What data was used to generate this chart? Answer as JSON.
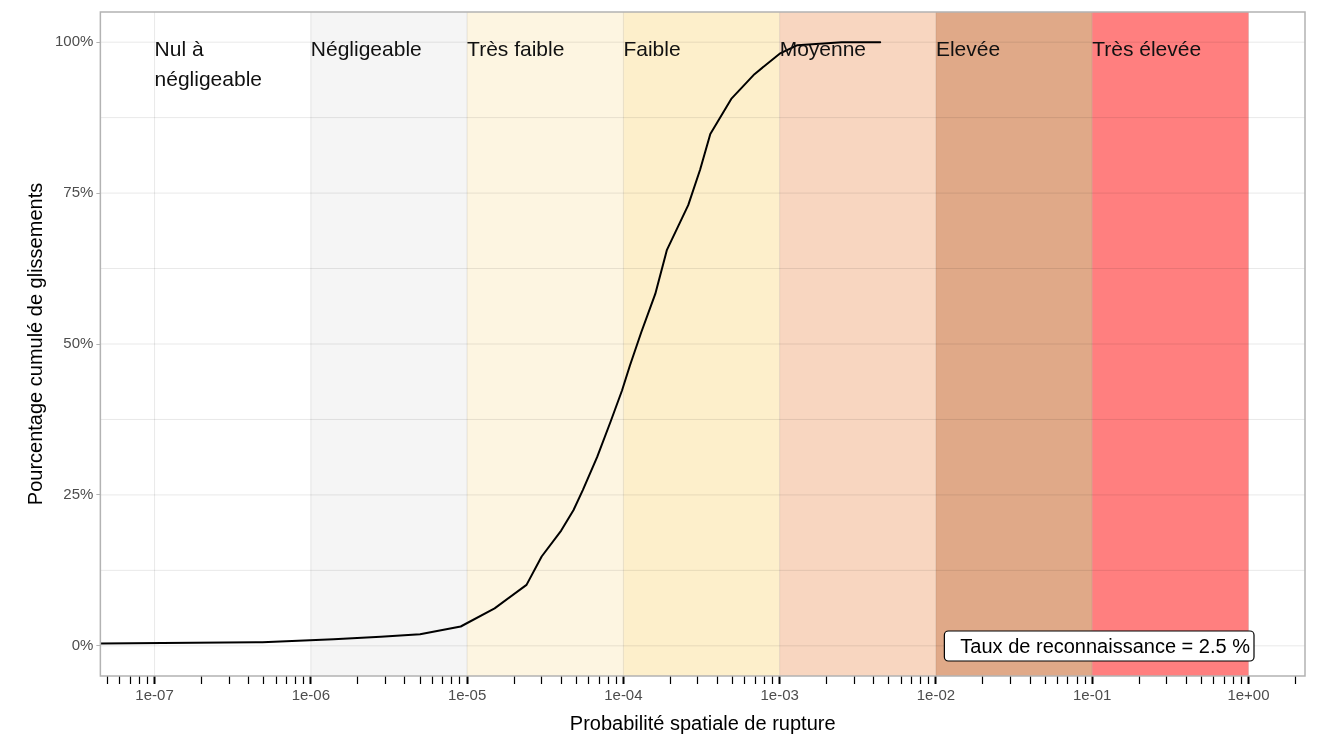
{
  "chart_data": {
    "type": "line",
    "xlabel": "Probabilité spatiale de rupture",
    "ylabel": "Pourcentage cumulé de glissements",
    "log": "x",
    "grid": true,
    "legend": false,
    "marker": "none",
    "line_style": "solid",
    "series": [
      {
        "color": "#000000",
        "x": [
          4.5e-08,
          4.9e-07,
          1.4e-06,
          2.8e-06,
          5e-06,
          9.1e-06,
          1.5e-05,
          2.4e-05,
          3e-05,
          4e-05,
          4.8e-05,
          5.5e-05,
          6.8e-05,
          8.3e-05,
          9.8e-05,
          0.00011,
          0.00013,
          0.00016,
          0.00019,
          0.00026,
          0.00031,
          0.00036,
          0.00049,
          0.00069,
          0.001,
          0.0013,
          0.0025,
          0.0044
        ],
        "values": [
          0.4,
          0.6,
          1.1,
          1.5,
          1.9,
          3.2,
          6.2,
          10.1,
          14.8,
          19.1,
          22.5,
          25.8,
          31.3,
          37.2,
          42.3,
          46.4,
          51.9,
          58.3,
          65.6,
          73,
          78.9,
          84.8,
          90.6,
          94.7,
          98.1,
          99.5,
          100,
          100
        ]
      }
    ],
    "xlim": [
      4.5e-08,
      2.3
    ],
    "xticks": [
      {
        "value": 5e-08,
        "label": null
      },
      {
        "value": 6e-08,
        "label": null
      },
      {
        "value": 7e-08,
        "label": null
      },
      {
        "value": 8e-08,
        "label": null
      },
      {
        "value": 9e-08,
        "label": null
      },
      {
        "value": 1e-07,
        "label": "1e-07"
      },
      {
        "value": 2e-07,
        "label": null
      },
      {
        "value": 3e-07,
        "label": null
      },
      {
        "value": 4e-07,
        "label": null
      },
      {
        "value": 5e-07,
        "label": null
      },
      {
        "value": 6e-07,
        "label": null
      },
      {
        "value": 7e-07,
        "label": null
      },
      {
        "value": 8e-07,
        "label": null
      },
      {
        "value": 9e-07,
        "label": null
      },
      {
        "value": 1e-06,
        "label": "1e-06"
      },
      {
        "value": 2e-06,
        "label": null
      },
      {
        "value": 3e-06,
        "label": null
      },
      {
        "value": 4e-06,
        "label": null
      },
      {
        "value": 5e-06,
        "label": null
      },
      {
        "value": 6e-06,
        "label": null
      },
      {
        "value": 7e-06,
        "label": null
      },
      {
        "value": 8e-06,
        "label": null
      },
      {
        "value": 9e-06,
        "label": null
      },
      {
        "value": 1e-05,
        "label": "1e-05"
      },
      {
        "value": 2e-05,
        "label": null
      },
      {
        "value": 3e-05,
        "label": null
      },
      {
        "value": 4e-05,
        "label": null
      },
      {
        "value": 5e-05,
        "label": null
      },
      {
        "value": 6e-05,
        "label": null
      },
      {
        "value": 7e-05,
        "label": null
      },
      {
        "value": 8e-05,
        "label": null
      },
      {
        "value": 9e-05,
        "label": null
      },
      {
        "value": 0.0001,
        "label": "1e-04"
      },
      {
        "value": 0.0002,
        "label": null
      },
      {
        "value": 0.0003,
        "label": null
      },
      {
        "value": 0.0004,
        "label": null
      },
      {
        "value": 0.0005,
        "label": null
      },
      {
        "value": 0.0006,
        "label": null
      },
      {
        "value": 0.0007,
        "label": null
      },
      {
        "value": 0.0008,
        "label": null
      },
      {
        "value": 0.0009,
        "label": null
      },
      {
        "value": 0.001,
        "label": "1e-03"
      },
      {
        "value": 0.002,
        "label": null
      },
      {
        "value": 0.003,
        "label": null
      },
      {
        "value": 0.004,
        "label": null
      },
      {
        "value": 0.005,
        "label": null
      },
      {
        "value": 0.006,
        "label": null
      },
      {
        "value": 0.007,
        "label": null
      },
      {
        "value": 0.008,
        "label": null
      },
      {
        "value": 0.009,
        "label": null
      },
      {
        "value": 0.01,
        "label": "1e-02"
      },
      {
        "value": 0.02,
        "label": null
      },
      {
        "value": 0.03,
        "label": null
      },
      {
        "value": 0.04,
        "label": null
      },
      {
        "value": 0.05,
        "label": null
      },
      {
        "value": 0.06,
        "label": null
      },
      {
        "value": 0.07,
        "label": null
      },
      {
        "value": 0.08,
        "label": null
      },
      {
        "value": 0.09,
        "label": null
      },
      {
        "value": 0.1,
        "label": "1e-01"
      },
      {
        "value": 0.2,
        "label": null
      },
      {
        "value": 0.3,
        "label": null
      },
      {
        "value": 0.4,
        "label": null
      },
      {
        "value": 0.5,
        "label": null
      },
      {
        "value": 0.6,
        "label": null
      },
      {
        "value": 0.7,
        "label": null
      },
      {
        "value": 0.8,
        "label": null
      },
      {
        "value": 0.9,
        "label": null
      },
      {
        "value": 1,
        "label": "1e+00"
      },
      {
        "value": 2,
        "label": null
      }
    ],
    "ylim": [
      -5,
      105
    ],
    "yticks": [
      {
        "value": 0,
        "label": "0%"
      },
      {
        "value": 12.5,
        "label": null
      },
      {
        "value": 25,
        "label": "25%"
      },
      {
        "value": 37.5,
        "label": null
      },
      {
        "value": 50,
        "label": "50%"
      },
      {
        "value": 62.5,
        "label": null
      },
      {
        "value": 75,
        "label": "75%"
      },
      {
        "value": 87.5,
        "label": null
      },
      {
        "value": 100,
        "label": "100%"
      }
    ],
    "bands": [
      {
        "axis": "x",
        "from": 1e-06,
        "to": 1e-05,
        "label": "Négligeable",
        "color": "#f5f5f5"
      },
      {
        "axis": "x",
        "from": 1e-05,
        "to": 0.0001,
        "label": "Très faible",
        "color": "#fdf5e1"
      },
      {
        "axis": "x",
        "from": 0.0001,
        "to": 0.001,
        "label": "Faible",
        "color": "#fdefcb"
      },
      {
        "axis": "x",
        "from": 0.001,
        "to": 0.01,
        "label": "Moyenne",
        "color": "#f8d6c0"
      },
      {
        "axis": "x",
        "from": 0.01,
        "to": 0.1,
        "label": "Elevée",
        "color": "#e0a988"
      },
      {
        "axis": "x",
        "from": 0.1,
        "to": 1,
        "label": "Très élevée",
        "color": "#ff7f7f"
      }
    ],
    "annotations": [
      "Nul à négligeable",
      "Taux de reconnaissance = 2.5 %"
    ]
  }
}
